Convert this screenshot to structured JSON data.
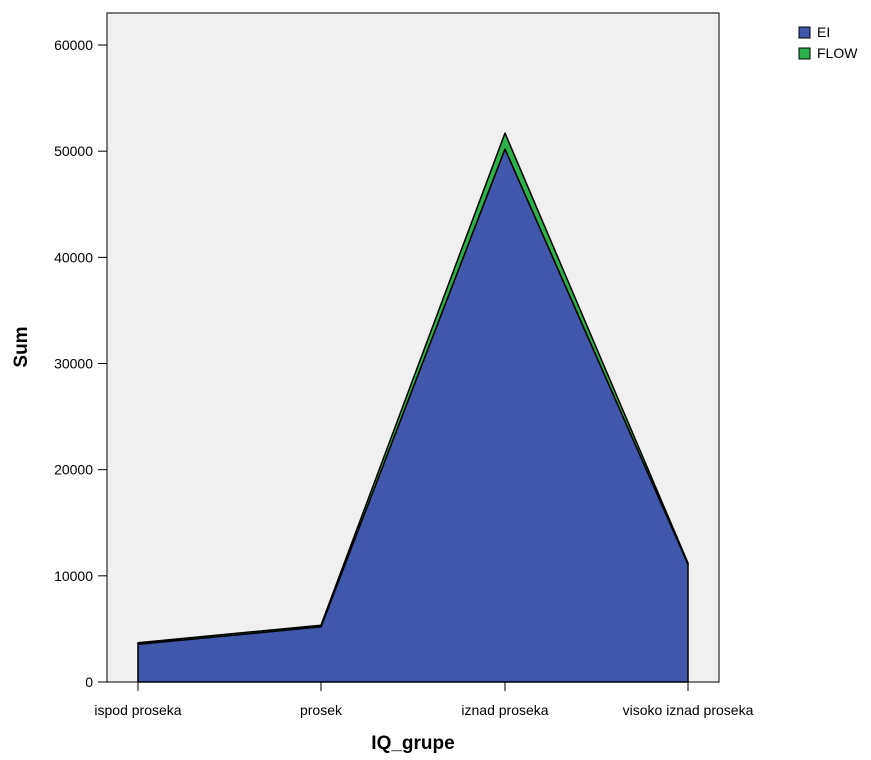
{
  "chart_data": {
    "type": "area",
    "stacked": true,
    "categories": [
      "ispod proseka",
      "prosek",
      "iznad proseka",
      "visoko iznad proseka"
    ],
    "series": [
      {
        "name": "EI",
        "values": [
          3550,
          5200,
          50200,
          11100
        ],
        "color": "#3f58ab"
      },
      {
        "name": "FLOW",
        "values": [
          150,
          150,
          1500,
          100
        ],
        "color": "#2eb04a"
      }
    ],
    "xlabel": "IQ_grupe",
    "ylabel": "Sum",
    "ylim": [
      0,
      60000
    ],
    "yticks": [
      0,
      10000,
      20000,
      30000,
      40000,
      50000,
      60000
    ],
    "plot_background": "#f0f0f0",
    "grid": false,
    "legend_position": "top-right"
  }
}
